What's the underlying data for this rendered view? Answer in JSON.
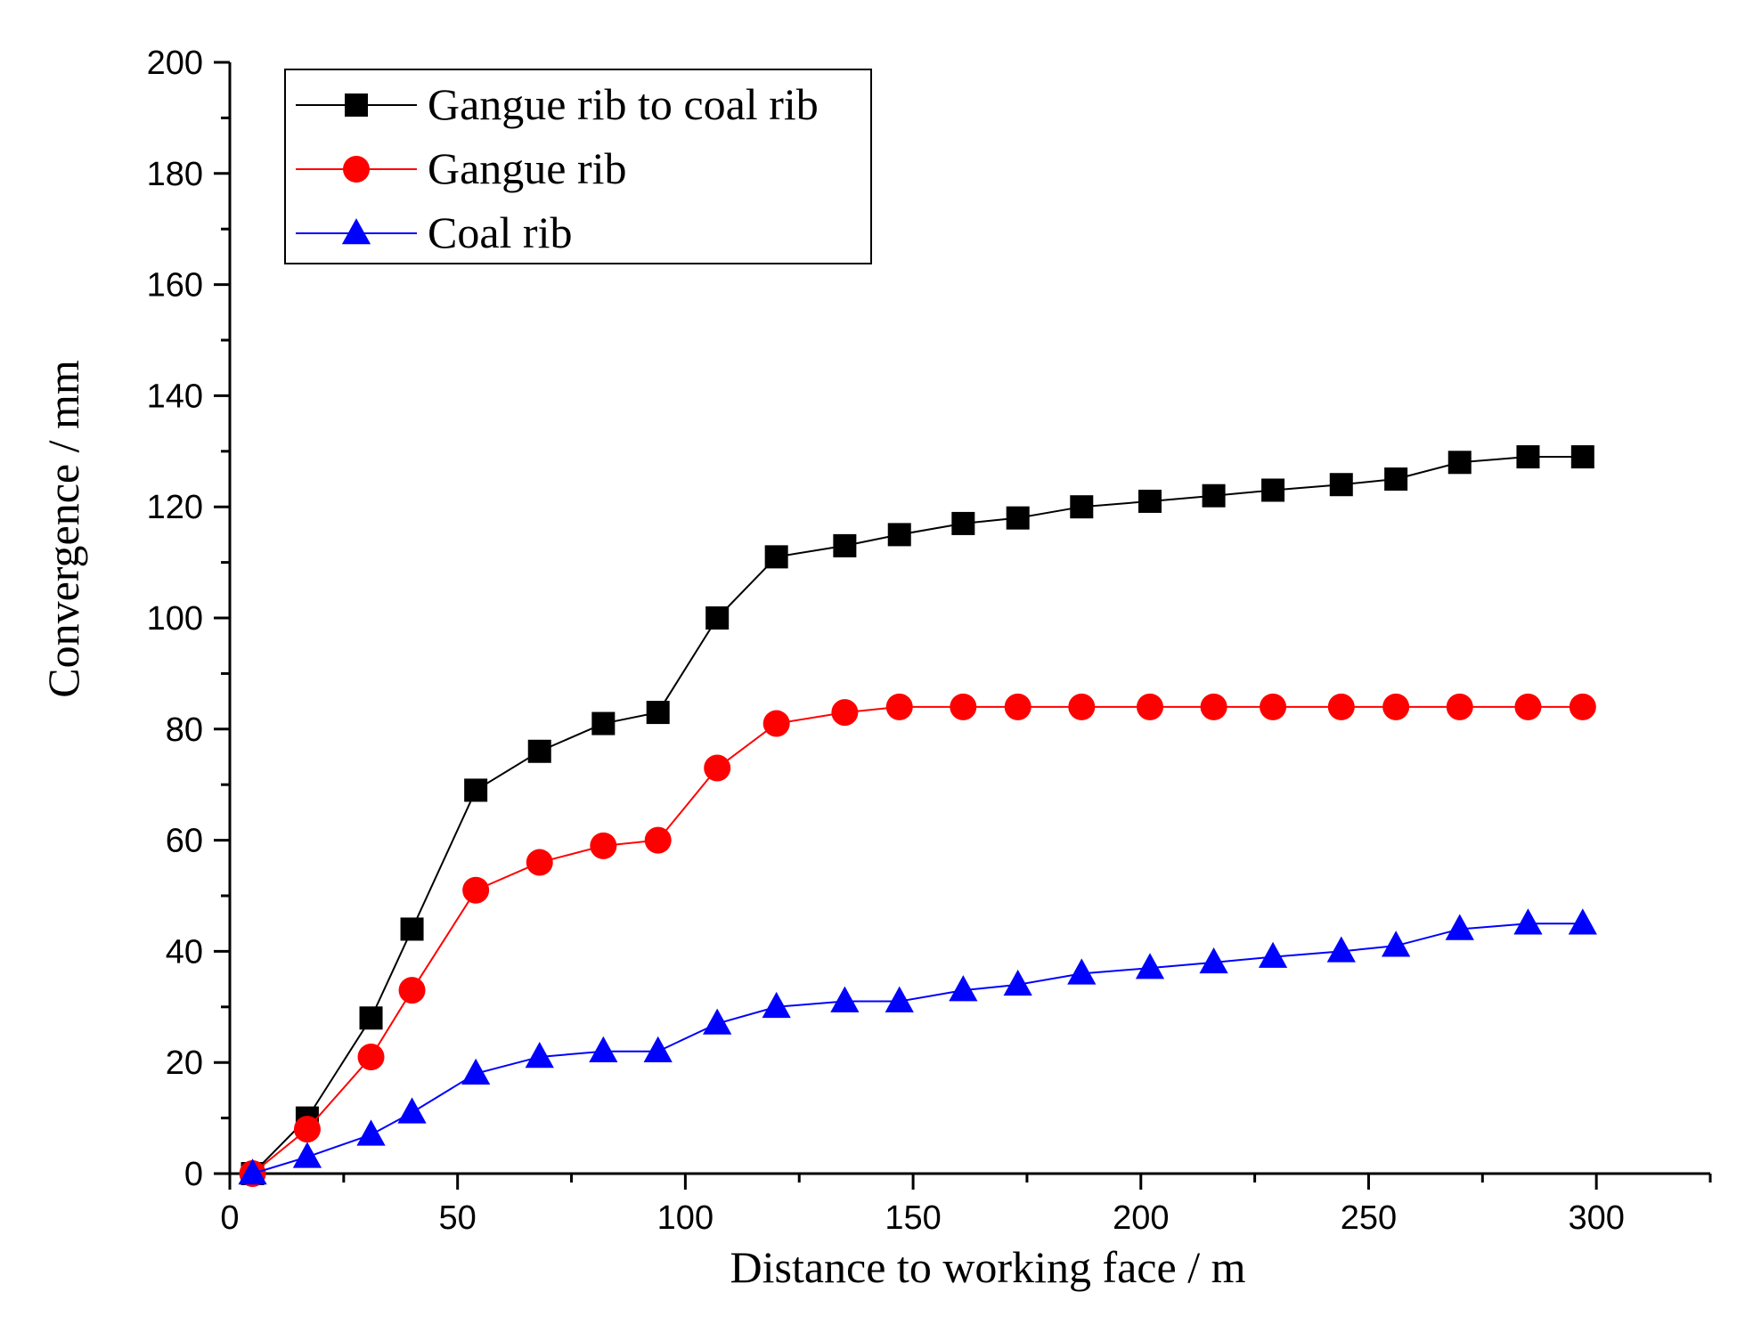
{
  "chart_data": {
    "type": "line",
    "title": "",
    "xlabel": "Distance to working face / m",
    "ylabel": "Convergence / mm",
    "xlim": [
      0,
      325
    ],
    "ylim": [
      0,
      200
    ],
    "xticks": [
      0,
      50,
      100,
      150,
      200,
      250,
      300
    ],
    "yticks": [
      0,
      20,
      40,
      60,
      80,
      100,
      120,
      140,
      160,
      180,
      200
    ],
    "grid": false,
    "legend": "top-left",
    "x": [
      5,
      17,
      31,
      40,
      54,
      68,
      82,
      94,
      107,
      120,
      135,
      147,
      161,
      173,
      187,
      202,
      216,
      229,
      244,
      256,
      270,
      285,
      297
    ],
    "series": [
      {
        "name": "Gangue rib to coal rib",
        "color": "#000000",
        "marker": "square",
        "values": [
          0,
          10,
          28,
          44,
          69,
          76,
          81,
          83,
          100,
          111,
          113,
          115,
          117,
          118,
          120,
          121,
          122,
          123,
          124,
          125,
          128,
          129,
          129
        ]
      },
      {
        "name": "Gangue rib",
        "color": "#ff0000",
        "marker": "circle",
        "values": [
          0,
          8,
          21,
          33,
          51,
          56,
          59,
          60,
          73,
          81,
          83,
          84,
          84,
          84,
          84,
          84,
          84,
          84,
          84,
          84,
          84,
          84,
          84
        ]
      },
      {
        "name": "Coal rib",
        "color": "#0000ff",
        "marker": "triangle",
        "values": [
          0,
          3,
          7,
          11,
          18,
          21,
          22,
          22,
          27,
          30,
          31,
          31,
          33,
          34,
          36,
          37,
          38,
          39,
          40,
          41,
          44,
          45,
          45
        ]
      }
    ]
  }
}
